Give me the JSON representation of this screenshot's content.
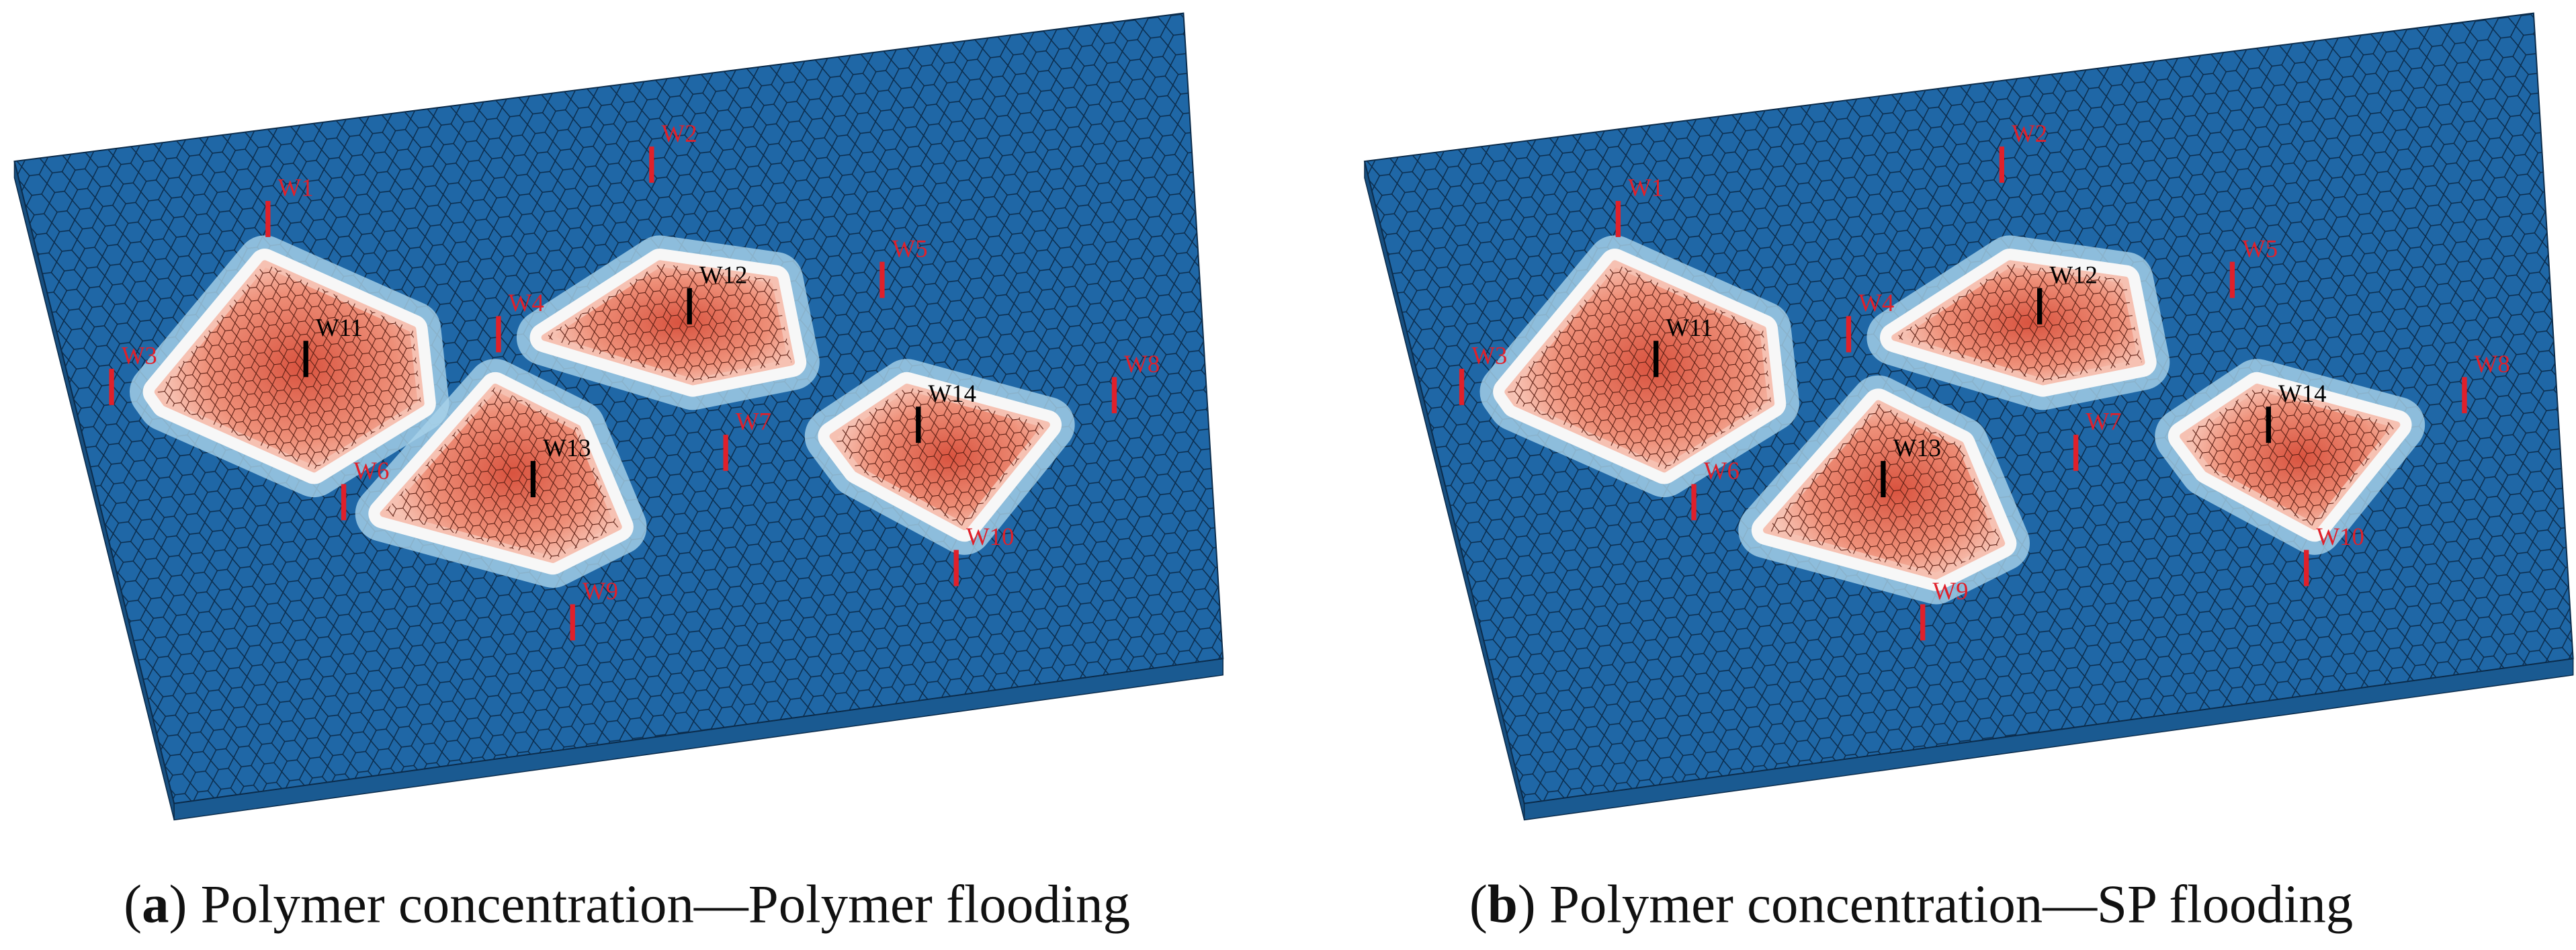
{
  "panels": [
    {
      "caption": {
        "open": "(",
        "label": "a",
        "text": ") Polymer concentration—Polymer flooding"
      },
      "wells": [
        "W1",
        "W2",
        "W3",
        "W4",
        "W5",
        "W6",
        "W7",
        "W8",
        "W9",
        "W10",
        "W11",
        "W12",
        "W13",
        "W14"
      ]
    },
    {
      "caption": {
        "open": "(",
        "label": "b",
        "text": ") Polymer concentration—SP flooding"
      },
      "wells": [
        "W1",
        "W2",
        "W3",
        "W4",
        "W5",
        "W6",
        "W7",
        "W8",
        "W9",
        "W10",
        "W11",
        "W12",
        "W13",
        "W14"
      ]
    }
  ]
}
